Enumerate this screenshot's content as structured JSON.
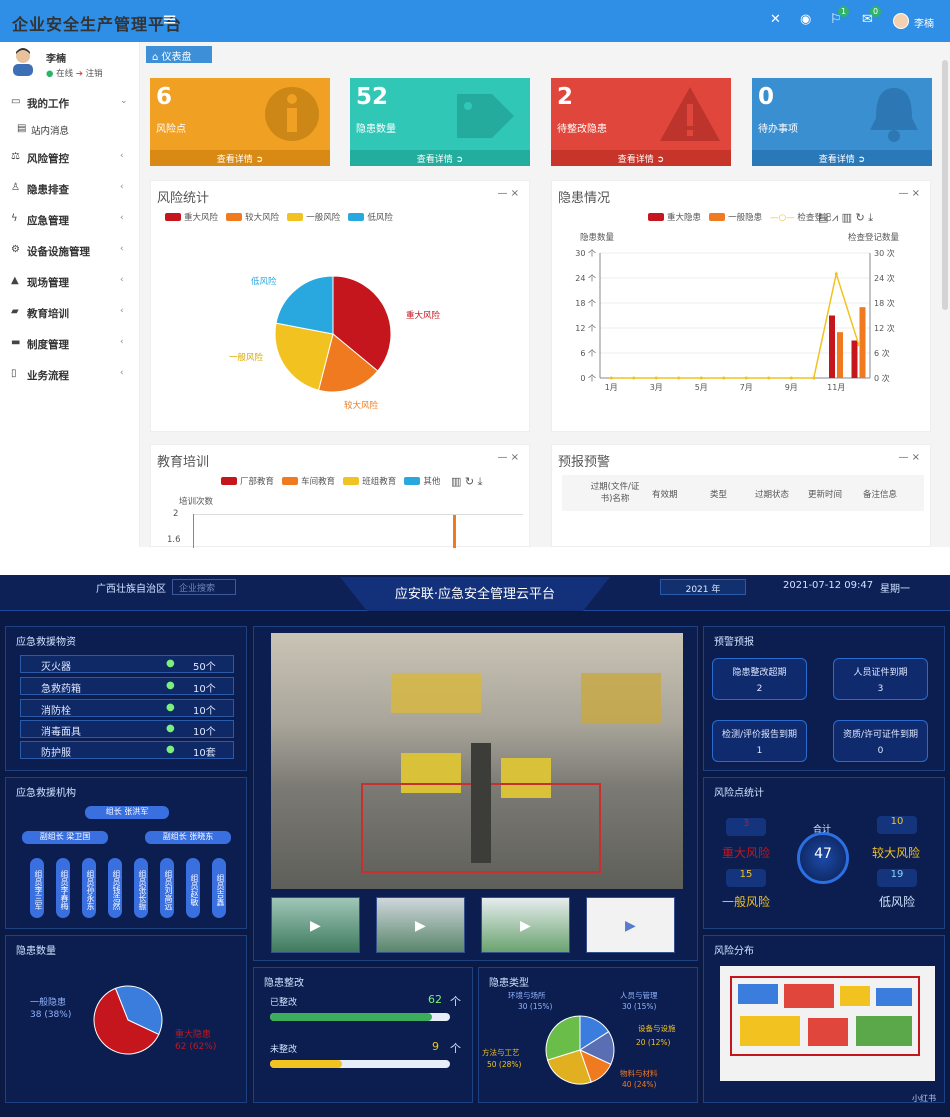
{
  "topbar": {
    "title": "企业安全生产管理平台",
    "user": "李楠",
    "badge_a": "1",
    "badge_b": "0"
  },
  "sidebar": {
    "user_name": "李楠",
    "status_online": "在线",
    "status_logout": "注销",
    "items": [
      {
        "label": "我的工作",
        "icon": "monitor-icon",
        "arrow": "⌄"
      },
      {
        "label": "站内消息",
        "icon": "message-icon",
        "arrow": ""
      },
      {
        "label": "风险管控",
        "icon": "scale-icon",
        "arrow": "‹"
      },
      {
        "label": "隐患排查",
        "icon": "inspect-icon",
        "arrow": "‹"
      },
      {
        "label": "应急管理",
        "icon": "bolt-icon",
        "arrow": "‹"
      },
      {
        "label": "设备设施管理",
        "icon": "cogs-icon",
        "arrow": "‹"
      },
      {
        "label": "现场管理",
        "icon": "warning-icon",
        "arrow": "‹"
      },
      {
        "label": "教育培训",
        "icon": "book-icon",
        "arrow": "‹"
      },
      {
        "label": "制度管理",
        "icon": "rule-icon",
        "arrow": "‹"
      },
      {
        "label": "业务流程",
        "icon": "flow-icon",
        "arrow": "‹"
      }
    ]
  },
  "tab": {
    "label": "仪表盘"
  },
  "cards": [
    {
      "value": "6",
      "label": "风险点",
      "more": "查看详情",
      "color": "#f0a023"
    },
    {
      "value": "52",
      "label": "隐患数量",
      "more": "查看详情",
      "color": "#30c7b7"
    },
    {
      "value": "2",
      "label": "待整改隐患",
      "more": "查看详情",
      "color": "#e0463b"
    },
    {
      "value": "0",
      "label": "待办事项",
      "more": "查看详情",
      "color": "#3a8fd0"
    }
  ],
  "risk_panel": {
    "title": "风险统计",
    "ctl": "— ×",
    "legend": [
      "重大风险",
      "较大风险",
      "一般风险",
      "低风险"
    ],
    "labels": {
      "major": "重大风险",
      "larger": "较大风险",
      "general": "一般风险",
      "low": "低风险"
    }
  },
  "hazard_panel": {
    "title": "隐患情况",
    "ctl": "— ×",
    "legend": [
      "重大隐患",
      "一般隐患",
      "检查登记"
    ],
    "ylabel_left": "隐患数量",
    "ylabel_right": "检查登记数量"
  },
  "edu_panel": {
    "title": "教育培训",
    "ctl": "— ×",
    "legend": [
      "厂部教育",
      "车间教育",
      "班组教育"
    ],
    "legend_extra": "其他",
    "ylabel": "培训次数"
  },
  "warn_panel": {
    "title": "预报预警",
    "ctl": "— ×",
    "cols": [
      "过期(文件/证书)名称",
      "有效期",
      "类型",
      "过期状态",
      "更新时间",
      "备注信息"
    ]
  },
  "chart_data": [
    {
      "type": "pie",
      "title": "风险统计",
      "labels": [
        "重大风险",
        "较大风险",
        "一般风险",
        "低风险"
      ],
      "values": [
        36,
        18,
        24,
        22
      ],
      "colors": [
        "#c4161c",
        "#f07a1f",
        "#f2c221",
        "#29a8df"
      ]
    },
    {
      "type": "bar",
      "title": "隐患情况",
      "categories": [
        "1月",
        "2月",
        "3月",
        "4月",
        "5月",
        "6月",
        "7月",
        "8月",
        "9月",
        "10月",
        "11月",
        "12月"
      ],
      "series": [
        {
          "name": "重大隐患",
          "values": [
            0,
            0,
            0,
            0,
            0,
            0,
            0,
            0,
            0,
            0,
            15,
            9
          ]
        },
        {
          "name": "一般隐患",
          "values": [
            0,
            0,
            0,
            0,
            0,
            0,
            0,
            0,
            0,
            0,
            11,
            17
          ]
        },
        {
          "name": "检查登记",
          "values": [
            0,
            0,
            0,
            0,
            0,
            0,
            0,
            0,
            0,
            0,
            25,
            8
          ]
        }
      ],
      "x_ticks": [
        "1月",
        "3月",
        "5月",
        "7月",
        "9月",
        "11月"
      ],
      "ylim": [
        0,
        30
      ],
      "y_ticks_left": [
        "0 个",
        "6 个",
        "12 个",
        "18 个",
        "24 个",
        "30 个"
      ],
      "y_ticks_right": [
        "0 次",
        "6 次",
        "12 次",
        "18 次",
        "24 次",
        "30 次"
      ]
    },
    {
      "type": "bar",
      "title": "教育培训",
      "y_ticks": [
        "1.6",
        "2"
      ],
      "ylim": [
        1.6,
        2
      ]
    },
    {
      "type": "pie",
      "title": "隐患数量",
      "labels": [
        "一般隐患",
        "重大隐患"
      ],
      "values": [
        38,
        62
      ],
      "colors": [
        "#3b7ddd",
        "#c4161c"
      ]
    },
    {
      "type": "pie",
      "title": "隐患类型",
      "labels": [
        "环境与场所",
        "人员与管理",
        "设备与设施",
        "物料与材料",
        "方法与工艺"
      ],
      "values": [
        15,
        15,
        12,
        24,
        28
      ],
      "colors": [
        "#3b7ddd",
        "#5a6fb3",
        "#f07a1f",
        "#e0b020",
        "#6bbd4a"
      ]
    }
  ],
  "dash": {
    "region": "广西壮族自治区",
    "search": "企业搜索",
    "title": "应安联·应急安全管理云平台",
    "year": "2021 年",
    "datetime": "2021-07-12 09:47",
    "weekday": "星期一",
    "materials_title": "应急救援物资",
    "materials": [
      {
        "name": "灭火器",
        "count": "50个"
      },
      {
        "name": "急救药箱",
        "count": "10个"
      },
      {
        "name": "消防栓",
        "count": "10个"
      },
      {
        "name": "消毒面具",
        "count": "10个"
      },
      {
        "name": "防护服",
        "count": "10套"
      }
    ],
    "org_title": "应急救援机构",
    "leader": "组长 张洪军",
    "vice1": "副组长 梁卫国",
    "vice2": "副组长 张晓东",
    "members": [
      "组员李三军",
      "组员李春梅",
      "组员孙永东",
      "组员钱浩然",
      "组员张长振",
      "组员刘高远",
      "组员赵敏",
      "组员吉鑫"
    ],
    "hazard_count_title": "隐患数量",
    "hc_general": "一般隐患",
    "hc_general_v": "38 (38%)",
    "hc_major": "重大隐患",
    "hc_major_v": "62 (62%)",
    "rect_title": "隐患整改",
    "done": "已整改",
    "done_v": "62",
    "undone": "未整改",
    "undone_v": "9",
    "unit": "个",
    "htype_title": "隐患类型",
    "ht_env": "环境与场所",
    "ht_env_v": "30 (15%)",
    "ht_person": "人员与管理",
    "ht_person_v": "30 (15%)",
    "ht_equip": "设备与设施",
    "ht_equip_v": "20 (12%)",
    "ht_material": "物料与材料",
    "ht_material_v": "40 (24%)",
    "ht_method": "方法与工艺",
    "ht_method_v": "50 (28%)",
    "warn_title": "预警预报",
    "w1": "隐患整改超期",
    "w1v": "2",
    "w2": "人员证件到期",
    "w2v": "3",
    "w3": "检测/评价报告到期",
    "w3v": "1",
    "w4": "资质/许可证件到期",
    "w4v": "0",
    "riskstat_title": "风险点统计",
    "total_label": "合计",
    "total": "47",
    "major": "重大风险",
    "major_v": "3",
    "larger": "较大风险",
    "larger_v": "10",
    "general": "一般风险",
    "general_v": "15",
    "low": "低风险",
    "low_v": "19",
    "dist_title": "风险分布",
    "watermark": "小红书"
  }
}
